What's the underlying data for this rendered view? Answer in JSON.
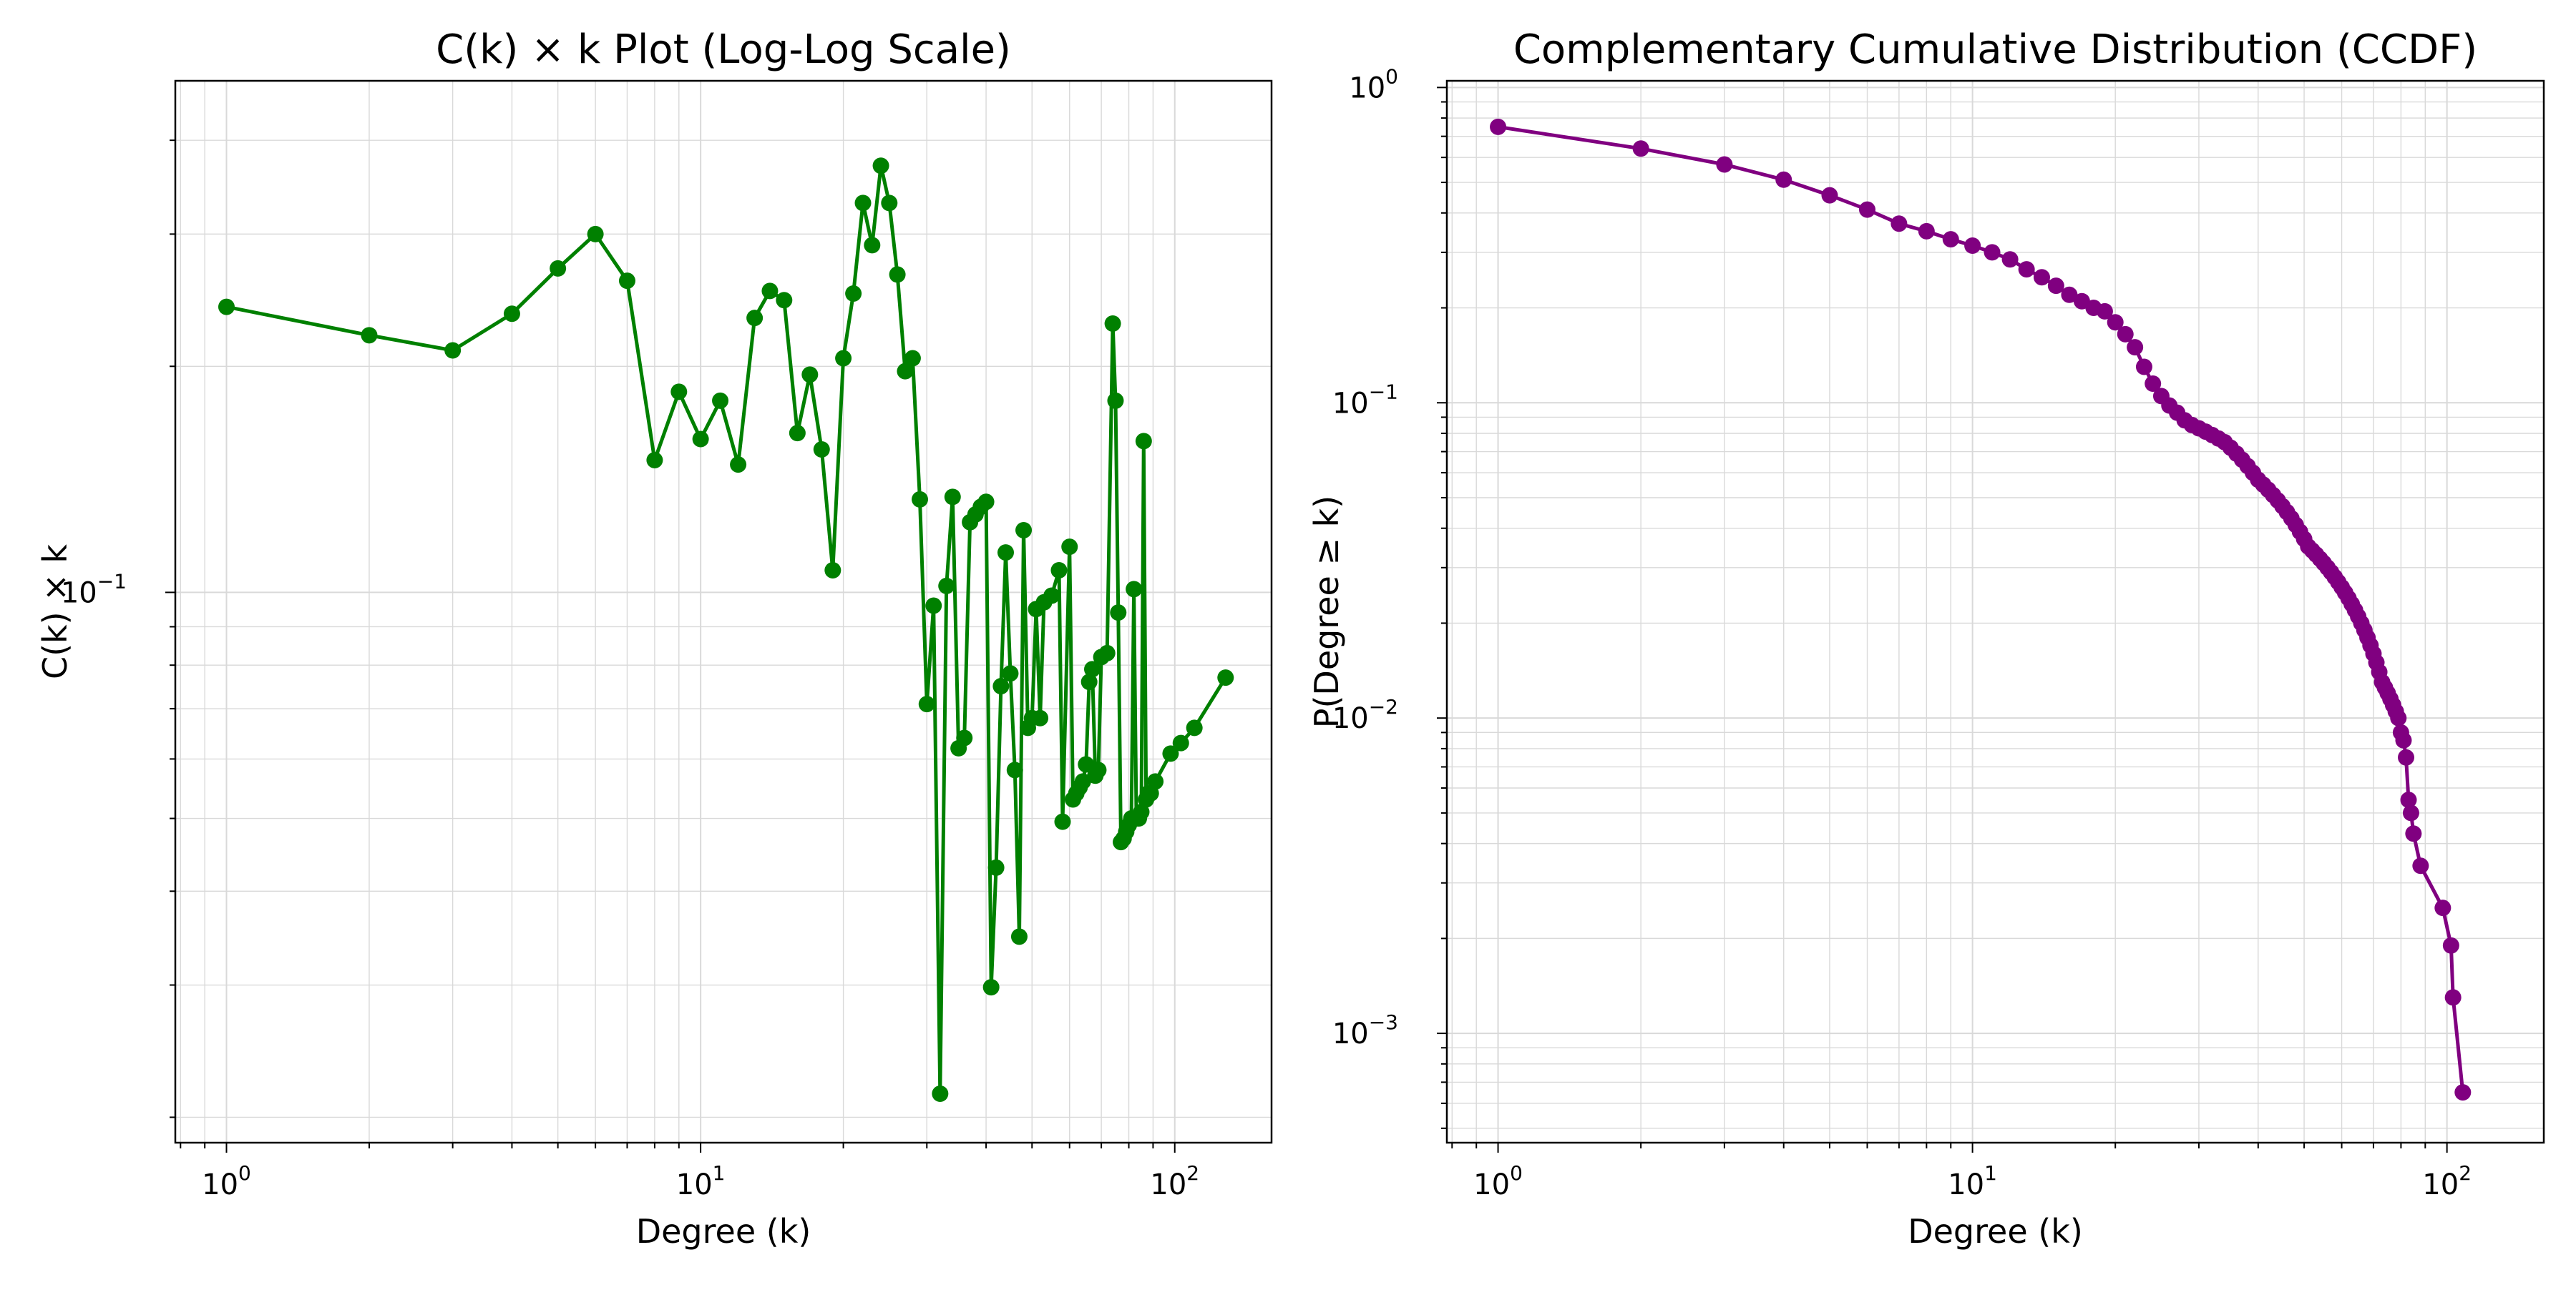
{
  "chart_data": [
    {
      "type": "line",
      "title": "C(k) × k Plot (Log-Log Scale)",
      "xlabel": "Degree (k)",
      "ylabel": "C(k) × k",
      "xscale": "log",
      "yscale": "log",
      "xlim": [
        0.78,
        160
      ],
      "ylim": [
        0.0185,
        0.48
      ],
      "grid": true,
      "color": "#008000",
      "marker": "circle",
      "x_ticks": [
        {
          "value": 1,
          "base": "10",
          "exp": "0"
        },
        {
          "value": 10,
          "base": "10",
          "exp": "1"
        },
        {
          "value": 100,
          "base": "10",
          "exp": "2"
        }
      ],
      "y_ticks": [
        {
          "value": 0.1,
          "base": "10",
          "exp": "−1"
        }
      ],
      "series": [
        {
          "x": [
            1,
            2,
            3,
            4,
            5,
            6,
            7,
            8,
            9,
            10,
            11,
            12,
            13,
            14,
            15,
            16,
            17,
            18,
            19,
            20,
            21,
            22,
            23,
            24,
            25,
            26,
            27,
            28,
            29,
            30,
            31,
            32,
            33,
            34,
            35,
            36,
            37,
            38,
            39,
            40,
            41,
            42,
            43,
            44,
            45,
            46,
            47,
            48,
            49,
            50,
            51,
            52,
            53,
            55,
            57,
            58,
            60,
            61,
            62,
            63,
            64,
            65,
            66,
            67,
            68,
            69,
            70,
            72,
            74,
            75,
            76,
            77,
            78,
            79,
            80,
            81,
            82,
            83,
            84,
            85,
            86,
            87,
            88,
            89,
            91,
            98,
            103,
            110,
            128
          ],
          "y": [
            0.24,
            0.22,
            0.21,
            0.235,
            0.27,
            0.3,
            0.26,
            0.15,
            0.185,
            0.16,
            0.18,
            0.148,
            0.232,
            0.252,
            0.245,
            0.163,
            0.195,
            0.155,
            0.107,
            0.205,
            0.25,
            0.33,
            0.29,
            0.37,
            0.33,
            0.265,
            0.197,
            0.205,
            0.133,
            0.071,
            0.096,
            0.0215,
            0.102,
            0.134,
            0.062,
            0.064,
            0.124,
            0.127,
            0.13,
            0.132,
            0.0298,
            0.043,
            0.075,
            0.113,
            0.078,
            0.058,
            0.0348,
            0.121,
            0.066,
            0.068,
            0.095,
            0.068,
            0.097,
            0.099,
            0.107,
            0.0495,
            0.115,
            0.053,
            0.054,
            0.055,
            0.056,
            0.059,
            0.076,
            0.079,
            0.057,
            0.058,
            0.082,
            0.083,
            0.228,
            0.18,
            0.094,
            0.0465,
            0.047,
            0.048,
            0.049,
            0.05,
            0.101,
            0.05,
            0.05,
            0.051,
            0.159,
            0.053,
            0.054,
            0.054,
            0.056,
            0.061,
            0.063,
            0.066,
            0.077
          ]
        }
      ]
    },
    {
      "type": "line",
      "title": "Complementary Cumulative Distribution (CCDF)",
      "xlabel": "Degree (k)",
      "ylabel": "P(Degree ≥ k)",
      "xscale": "log",
      "yscale": "log",
      "xlim": [
        0.78,
        160
      ],
      "ylim": [
        0.00045,
        1.05
      ],
      "grid": true,
      "color": "#800080",
      "marker": "circle",
      "x_ticks": [
        {
          "value": 1,
          "base": "10",
          "exp": "0"
        },
        {
          "value": 10,
          "base": "10",
          "exp": "1"
        },
        {
          "value": 100,
          "base": "10",
          "exp": "2"
        }
      ],
      "y_ticks": [
        {
          "value": 1,
          "base": "10",
          "exp": "0"
        },
        {
          "value": 0.1,
          "base": "10",
          "exp": "−1"
        },
        {
          "value": 0.01,
          "base": "10",
          "exp": "−2"
        },
        {
          "value": 0.001,
          "base": "10",
          "exp": "−3"
        }
      ],
      "series": [
        {
          "x": [
            1,
            2,
            3,
            4,
            5,
            6,
            7,
            8,
            9,
            10,
            11,
            12,
            13,
            14,
            15,
            16,
            17,
            18,
            19,
            20,
            21,
            22,
            23,
            24,
            25,
            26,
            27,
            28,
            29,
            30,
            31,
            32,
            33,
            34,
            35,
            36,
            37,
            38,
            39,
            40,
            41,
            42,
            43,
            44,
            45,
            46,
            47,
            48,
            49,
            50,
            51,
            52,
            53,
            54,
            55,
            56,
            57,
            58,
            59,
            60,
            61,
            62,
            63,
            64,
            65,
            66,
            67,
            68,
            69,
            70,
            71,
            72,
            73,
            74,
            75,
            76,
            77,
            78,
            79,
            80,
            81,
            82,
            83,
            84,
            85,
            88,
            98,
            102,
            103,
            108
          ],
          "y": [
            0.75,
            0.64,
            0.57,
            0.51,
            0.455,
            0.41,
            0.37,
            0.35,
            0.33,
            0.315,
            0.3,
            0.285,
            0.265,
            0.25,
            0.235,
            0.22,
            0.21,
            0.2,
            0.195,
            0.18,
            0.165,
            0.15,
            0.13,
            0.115,
            0.105,
            0.098,
            0.093,
            0.088,
            0.085,
            0.083,
            0.081,
            0.079,
            0.077,
            0.075,
            0.072,
            0.069,
            0.066,
            0.063,
            0.06,
            0.057,
            0.055,
            0.053,
            0.051,
            0.049,
            0.047,
            0.045,
            0.043,
            0.041,
            0.039,
            0.037,
            0.035,
            0.034,
            0.033,
            0.032,
            0.031,
            0.03,
            0.029,
            0.028,
            0.027,
            0.026,
            0.025,
            0.024,
            0.023,
            0.022,
            0.021,
            0.02,
            0.019,
            0.018,
            0.017,
            0.016,
            0.015,
            0.014,
            0.013,
            0.0125,
            0.012,
            0.0115,
            0.011,
            0.0105,
            0.01,
            0.009,
            0.0085,
            0.0075,
            0.0055,
            0.005,
            0.0043,
            0.0034,
            0.0025,
            0.0019,
            0.0013,
            0.00065
          ]
        }
      ]
    }
  ]
}
